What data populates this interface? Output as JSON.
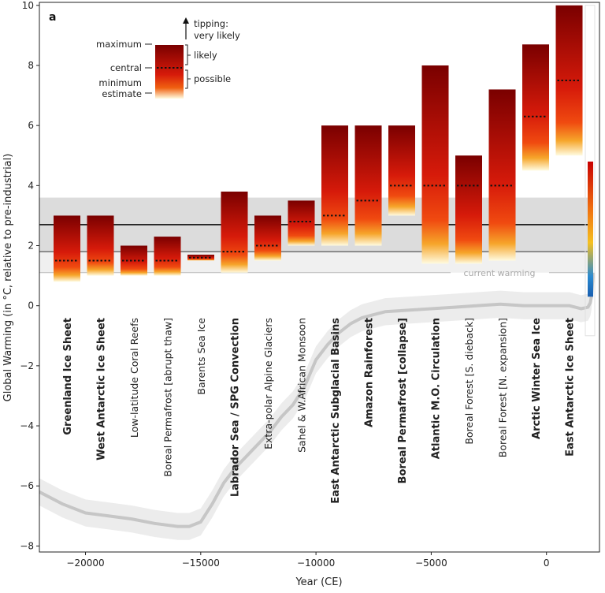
{
  "chart_data": {
    "type": "bar",
    "panel_label": "a",
    "xlabel": "Year (CE)",
    "ylabel": "Global Warming (in °C, relative to pre-industrial)",
    "xlim": [
      -22000,
      2300
    ],
    "ylim": [
      -8.2,
      10.1
    ],
    "xticks": [
      -20000,
      -15000,
      -10000,
      -5000,
      0
    ],
    "xtick_labels": [
      "−20000",
      "−15000",
      "−10000",
      "−5000",
      "0"
    ],
    "yticks": [
      -8,
      -6,
      -4,
      -2,
      0,
      2,
      4,
      6,
      8,
      10
    ],
    "ytick_labels": [
      "−8",
      "−6",
      "−4",
      "−2",
      "0",
      "2",
      "4",
      "6",
      "8",
      "10"
    ],
    "grid": false,
    "reference_lines": {
      "upper_line": 2.7,
      "upper_band": [
        1.8,
        3.6
      ],
      "lower_line": 1.8,
      "current_warming": 1.1,
      "current_warming_label": "current warming"
    },
    "elements": [
      {
        "name": "Greenland Ice Sheet",
        "bold": true,
        "min": 0.8,
        "central": 1.5,
        "max": 3.0
      },
      {
        "name": "West Antarctic Ice Sheet",
        "bold": true,
        "min": 1.0,
        "central": 1.5,
        "max": 3.0
      },
      {
        "name": "Low-latitude Coral Reefs",
        "bold": false,
        "min": 1.0,
        "central": 1.5,
        "max": 2.0
      },
      {
        "name": "Boreal Permafrost [abrupt thaw]",
        "bold": false,
        "min": 1.0,
        "central": 1.5,
        "max": 2.3
      },
      {
        "name": "Barents Sea Ice",
        "bold": false,
        "min": 1.5,
        "central": 1.6,
        "max": 1.7
      },
      {
        "name": "Labrador Sea / SPG Convection",
        "bold": true,
        "min": 1.1,
        "central": 1.8,
        "max": 3.8
      },
      {
        "name": "Extra-polar Alpine Glaciers",
        "bold": false,
        "min": 1.5,
        "central": 2.0,
        "max": 3.0
      },
      {
        "name": "Sahel & W.African Monsoon",
        "bold": false,
        "min": 2.0,
        "central": 2.8,
        "max": 3.5
      },
      {
        "name": "East Antarctic Subglacial Basins",
        "bold": true,
        "min": 2.0,
        "central": 3.0,
        "max": 6.0
      },
      {
        "name": "Amazon Rainforest",
        "bold": true,
        "min": 2.0,
        "central": 3.5,
        "max": 6.0
      },
      {
        "name": "Boreal Permafrost [collapse]",
        "bold": true,
        "min": 3.0,
        "central": 4.0,
        "max": 6.0
      },
      {
        "name": "Atlantic M.O. Circulation",
        "bold": true,
        "min": 1.4,
        "central": 4.0,
        "max": 8.0
      },
      {
        "name": "Boreal Forest [S. dieback]",
        "bold": false,
        "min": 1.4,
        "central": 4.0,
        "max": 5.0
      },
      {
        "name": "Boreal Forest [N. expansion]",
        "bold": false,
        "min": 1.5,
        "central": 4.0,
        "max": 7.2
      },
      {
        "name": "Arctic Winter Sea Ice",
        "bold": true,
        "min": 4.5,
        "central": 6.3,
        "max": 8.7
      },
      {
        "name": "East Antarctic Ice Sheet",
        "bold": true,
        "min": 5.0,
        "central": 7.5,
        "max": 10.0
      }
    ],
    "temperature_series": {
      "name": "",
      "x": [
        -22000,
        -21000,
        -20000,
        -19000,
        -18000,
        -17000,
        -16000,
        -15500,
        -15000,
        -14500,
        -14000,
        -13500,
        -13000,
        -12500,
        -12000,
        -11500,
        -11000,
        -10500,
        -10000,
        -9500,
        -9000,
        -8500,
        -8000,
        -7500,
        -7000,
        -6000,
        -5000,
        -4000,
        -3000,
        -2000,
        -1000,
        0,
        1000,
        1500,
        1800,
        1900,
        1950,
        2000,
        2020
      ],
      "y": [
        -6.2,
        -6.6,
        -6.9,
        -7.0,
        -7.1,
        -7.25,
        -7.35,
        -7.35,
        -7.2,
        -6.6,
        -5.9,
        -5.4,
        -5.0,
        -4.6,
        -4.2,
        -3.7,
        -3.3,
        -2.7,
        -1.8,
        -1.3,
        -0.9,
        -0.6,
        -0.4,
        -0.3,
        -0.2,
        -0.15,
        -0.1,
        -0.05,
        0.0,
        0.05,
        0.0,
        0.0,
        0.0,
        -0.1,
        -0.05,
        0.1,
        0.3,
        0.8,
        1.1
      ]
    },
    "legend": {
      "maximum": "maximum",
      "central": "central",
      "minimum": "minimum",
      "estimate": "estimate",
      "tipping_line1": "tipping:",
      "tipping_line2": "very likely",
      "likely": "likely",
      "possible": "possible"
    },
    "colors": {
      "bar_top": "#7a0000",
      "bar_mid": "#d41a0a",
      "bar_orange": "#f5a623",
      "bar_bottom": "#fff8d8",
      "band": "#dedede",
      "line": "#222222",
      "temperature": "#c8c8c8"
    }
  }
}
